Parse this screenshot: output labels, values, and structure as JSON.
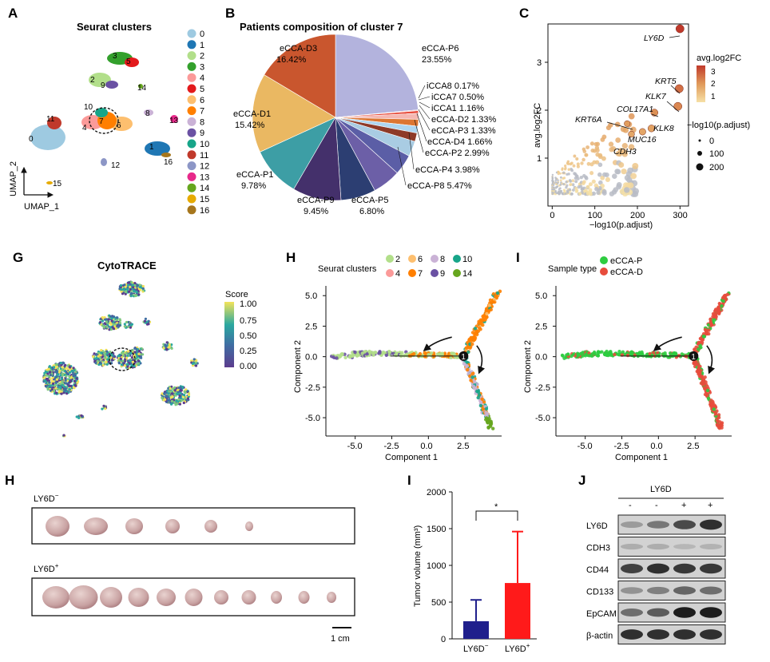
{
  "panels": {
    "A": {
      "letter": "A",
      "title": "Seurat clusters",
      "axis_y": "UMAP_2",
      "axis_x": "UMAP_1"
    },
    "B": {
      "letter": "B"
    },
    "C": {
      "letter": "C"
    },
    "G": {
      "letter": "G",
      "title": "CytoTRACE",
      "legend_title": "Score"
    },
    "H": {
      "letter": "H"
    },
    "I": {
      "letter": "I"
    },
    "H2": {
      "letter": "H",
      "group1": "LY6D",
      "group1_sup": "−",
      "group2": "LY6D",
      "group2_sup": "+",
      "scalebar": "1 cm"
    },
    "I2": {
      "letter": "I"
    },
    "J": {
      "letter": "J"
    }
  },
  "colors": {
    "c0": "#9ecae1",
    "c1": "#1f77b4",
    "c2": "#b2df8a",
    "c3": "#33a02c",
    "c4": "#fb9a99",
    "c5": "#e31a1c",
    "c6": "#fdbf6f",
    "c7": "#ff7f00",
    "c8": "#cab2d6",
    "c9": "#6a51a3",
    "c10": "#17a589",
    "c11": "#c0392b",
    "c12": "#8c96c6",
    "c13": "#e7298a",
    "c14": "#66a61e",
    "c15": "#e6ab02",
    "c16": "#a6761d",
    "eccaP": "#2ecc40",
    "eccaD": "#e74c3c",
    "bar_neg": "#1f1f8c",
    "bar_pos": "#ff1a1a"
  },
  "chart_data": [
    {
      "id": "A",
      "type": "scatter",
      "title": "Seurat clusters",
      "xlabel": "UMAP_1",
      "ylabel": "UMAP_2",
      "legend": [
        "0",
        "1",
        "2",
        "3",
        "4",
        "5",
        "6",
        "7",
        "8",
        "9",
        "10",
        "11",
        "12",
        "13",
        "14",
        "15",
        "16"
      ],
      "cluster_labels": [
        "0",
        "1",
        "2",
        "3",
        "4",
        "5",
        "6",
        "7",
        "8",
        "9",
        "10",
        "11",
        "12",
        "13",
        "14",
        "15",
        "16"
      ]
    },
    {
      "id": "B",
      "type": "pie",
      "title": "Patients composition of cluster 7",
      "slices": [
        {
          "name": "eCCA-P6",
          "value": 23.55,
          "label": "eCCA-P6 23.55%",
          "color": "#b3b3dd"
        },
        {
          "name": "iCCA8",
          "value": 0.17,
          "label": "iCCA8 0.17%",
          "color": "#f4a6a6"
        },
        {
          "name": "iCCA7",
          "value": 0.5,
          "label": "iCCA7 0.50%",
          "color": "#e74c3c"
        },
        {
          "name": "iCCA1",
          "value": 1.16,
          "label": "iCCA1 1.16%",
          "color": "#f5b7b1"
        },
        {
          "name": "eCCA-D2",
          "value": 1.33,
          "label": "eCCA-D2 1.33%",
          "color": "#dc7633"
        },
        {
          "name": "eCCA-P3",
          "value": 1.33,
          "label": "eCCA-P3 1.33%",
          "color": "#aed6f1"
        },
        {
          "name": "eCCA-D4",
          "value": 1.66,
          "label": "eCCA-D4 1.66%",
          "color": "#8e3a28"
        },
        {
          "name": "eCCA-P2",
          "value": 2.99,
          "label": "eCCA-P2 2.99%",
          "color": "#a9cce3"
        },
        {
          "name": "eCCA-P4",
          "value": 3.98,
          "label": "eCCA-P4 3.98%",
          "color": "#5b5ea6"
        },
        {
          "name": "eCCA-P8",
          "value": 5.47,
          "label": "eCCA-P8 5.47%",
          "color": "#6c5fa7"
        },
        {
          "name": "eCCA-P5",
          "value": 6.8,
          "label_name": "eCCA-P5",
          "label_pct": "6.80%",
          "color": "#2c3e72"
        },
        {
          "name": "eCCA-P9",
          "value": 9.45,
          "label_name": "eCCA-P9",
          "label_pct": "9.45%",
          "color": "#44306b"
        },
        {
          "name": "eCCA-P1",
          "value": 9.78,
          "label_name": "eCCA-P1",
          "label_pct": "9.78%",
          "color": "#3d9ea5"
        },
        {
          "name": "eCCA-D1",
          "value": 15.42,
          "label_name": "eCCA-D1",
          "label_pct": "15.42%",
          "color": "#eab862"
        },
        {
          "name": "eCCA-D3",
          "value": 16.42,
          "label_name": "eCCA-D3",
          "label_pct": "16.42%",
          "color": "#c9562e"
        }
      ],
      "p6_label_name": "eCCA-P6",
      "p6_label_pct": "23.55%"
    },
    {
      "id": "C",
      "type": "scatter",
      "xlabel": "−log10(p.adjust)",
      "ylabel": "avg.log2FC",
      "xlim": [
        -10,
        320
      ],
      "ylim": [
        0,
        3.8
      ],
      "xticks": [
        0,
        100,
        200,
        300
      ],
      "yticks": [
        1,
        2,
        3
      ],
      "color_legend_title": "avg.log2FC",
      "color_ticks": [
        "3",
        "2",
        "1"
      ],
      "size_legend_title": "−log10(p.adjust)",
      "size_ticks": [
        "0",
        "100",
        "200"
      ],
      "genes": [
        {
          "name": "LY6D",
          "x": 300,
          "y": 3.7
        },
        {
          "name": "KRT5",
          "x": 298,
          "y": 2.45
        },
        {
          "name": "KLK7",
          "x": 295,
          "y": 2.08
        },
        {
          "name": "COL17A1",
          "x": 240,
          "y": 1.95
        },
        {
          "name": "KLK8",
          "x": 233,
          "y": 1.62
        },
        {
          "name": "KRT6A",
          "x": 176,
          "y": 1.72
        },
        {
          "name": "MUC16",
          "x": 212,
          "y": 1.55
        },
        {
          "name": "CDH3",
          "x": 186,
          "y": 1.5
        }
      ]
    },
    {
      "id": "H",
      "type": "scatter",
      "title": "Seurat clusters",
      "xlabel": "Component 1",
      "ylabel": "Component 2",
      "xlim": [
        -7,
        5
      ],
      "ylim": [
        -6.5,
        5.8
      ],
      "xticks": [
        -5.0,
        -2.5,
        0.0,
        2.5
      ],
      "yticks": [
        -5.0,
        -2.5,
        0.0,
        2.5,
        5.0
      ],
      "xticklabels": [
        "-5.0",
        "-2.5",
        "0.0",
        "2.5"
      ],
      "yticklabels": [
        "-5.0",
        "-2.5",
        "0.0",
        "2.5",
        "5.0"
      ],
      "legend": [
        "2",
        "6",
        "8",
        "10",
        "4",
        "7",
        "9",
        "14"
      ],
      "branch_point": "1"
    },
    {
      "id": "I",
      "type": "scatter",
      "title": "Sample type",
      "xlabel": "Component 1",
      "ylabel": "Component 2",
      "xlim": [
        -7,
        5
      ],
      "ylim": [
        -6.5,
        5.8
      ],
      "xticks": [
        -5.0,
        -2.5,
        0.0,
        2.5
      ],
      "yticks": [
        -5.0,
        -2.5,
        0.0,
        2.5,
        5.0
      ],
      "xticklabels": [
        "-5.0",
        "-2.5",
        "0.0",
        "2.5"
      ],
      "yticklabels": [
        "-5.0",
        "-2.5",
        "0.0",
        "2.5",
        "5.0"
      ],
      "legend": [
        "eCCA-P",
        "eCCA-D"
      ],
      "branch_point": "1"
    },
    {
      "id": "I2",
      "type": "bar",
      "categories": [
        "LY6D−",
        "LY6D+"
      ],
      "category_base": [
        "LY6D",
        "LY6D"
      ],
      "category_sup": [
        "−",
        "+"
      ],
      "values": [
        240,
        760
      ],
      "errors": [
        290,
        700
      ],
      "ylabel": "Tumor volume (mm³)",
      "ylim": [
        0,
        2000
      ],
      "yticks": [
        0,
        500,
        1000,
        1500,
        2000
      ],
      "significance": "*"
    },
    {
      "id": "J",
      "type": "table",
      "header": "LY6D",
      "lanes": [
        "-",
        "-",
        "+",
        "+"
      ],
      "rows": [
        "LY6D",
        "CDH3",
        "CD44",
        "CD133",
        "EpCAM",
        "β-actin"
      ],
      "intensity": [
        [
          0.25,
          0.45,
          0.7,
          0.85
        ],
        [
          0.15,
          0.15,
          0.1,
          0.12
        ],
        [
          0.75,
          0.85,
          0.8,
          0.8
        ],
        [
          0.3,
          0.4,
          0.55,
          0.5
        ],
        [
          0.5,
          0.6,
          0.95,
          0.95
        ],
        [
          0.85,
          0.85,
          0.85,
          0.85
        ]
      ]
    }
  ]
}
